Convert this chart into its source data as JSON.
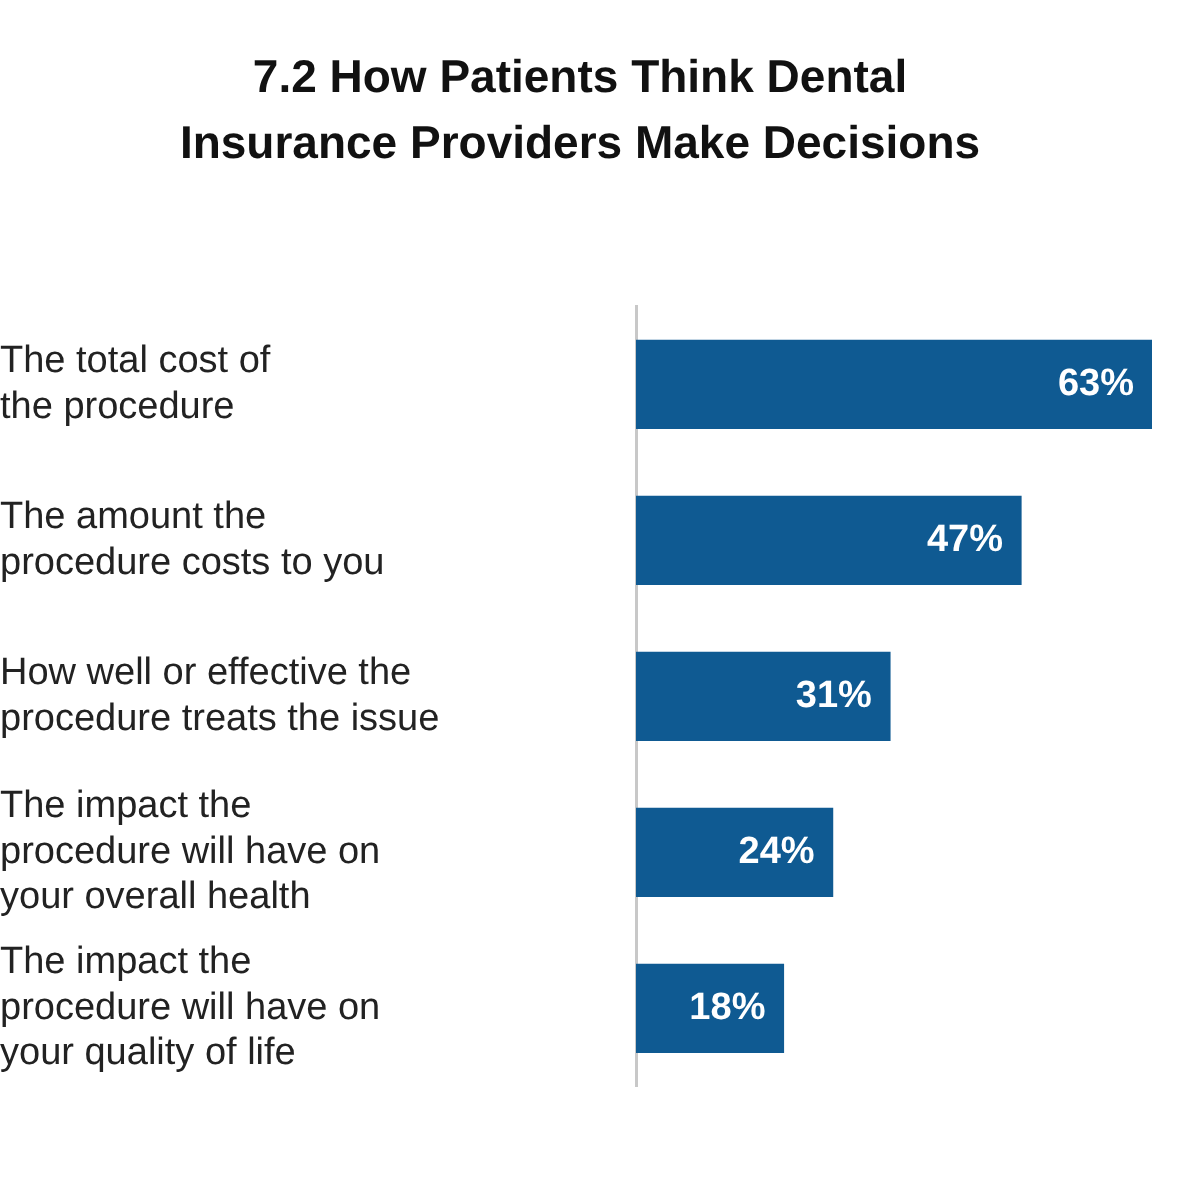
{
  "chart_data": {
    "type": "bar",
    "orientation": "horizontal",
    "title": "7.2 How Patients Think Dental Insurance Providers Make Decisions",
    "categories": [
      "The total cost of\nthe procedure",
      "The amount the\nprocedure costs to you",
      "How well or effective the\nprocedure treats the issue",
      "The impact the\nprocedure will have on\nyour overall health",
      "The impact the\nprocedure will have on\nyour quality of life"
    ],
    "values": [
      63,
      47,
      31,
      24,
      18
    ],
    "value_labels": [
      "63%",
      "47%",
      "31%",
      "24%",
      "18%"
    ],
    "color": "#0f5a92",
    "grid": false,
    "legend": false
  }
}
